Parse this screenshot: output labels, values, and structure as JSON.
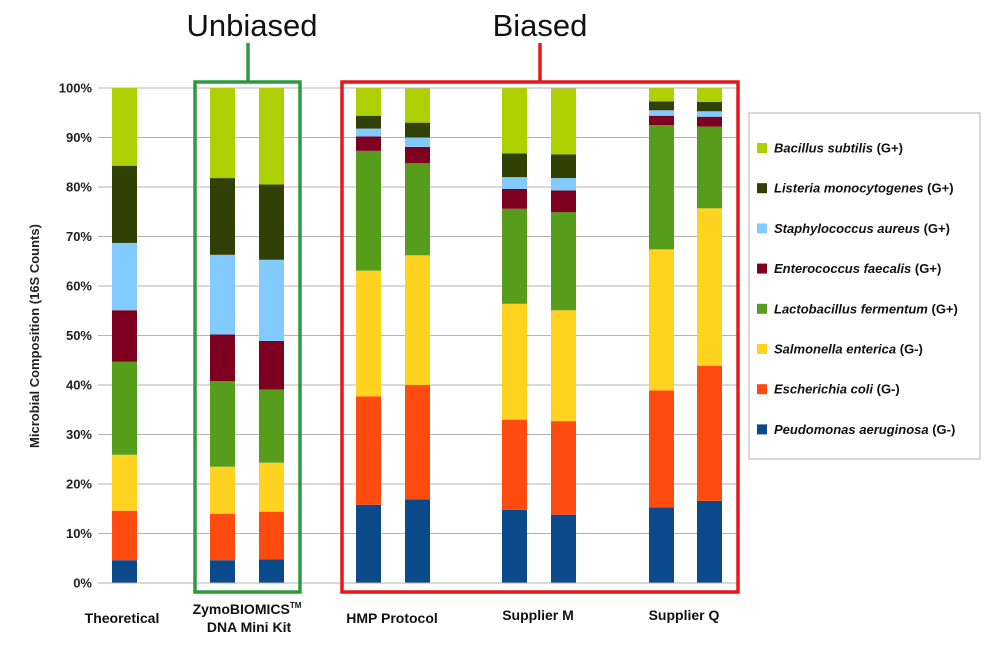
{
  "chart_data": {
    "type": "bar",
    "stacked": true,
    "ylabel": "Microbial Composition (16S Counts)",
    "ylim": [
      0,
      100
    ],
    "yticks": [
      "0%",
      "10%",
      "20%",
      "30%",
      "40%",
      "50%",
      "60%",
      "70%",
      "80%",
      "90%",
      "100%"
    ],
    "grid": true,
    "legend_position": "right",
    "groups": [
      {
        "label": "Theoretical",
        "label_line2": "",
        "bars": 1
      },
      {
        "label": "ZymoBIOMICS",
        "label_sup": "TM",
        "label_line2": "DNA Mini Kit",
        "bars": 2
      },
      {
        "label": "HMP Protocol",
        "label_line2": "",
        "bars": 2
      },
      {
        "label": "Supplier M",
        "label_line2": "",
        "bars": 2
      },
      {
        "label": "Supplier Q",
        "label_line2": "",
        "bars": 2
      }
    ],
    "annotations": [
      {
        "text": "Unbiased",
        "color": "#2e9a3e"
      },
      {
        "text": "Biased",
        "color": "#e3191c"
      }
    ],
    "series": [
      {
        "species": "Peudomonas aeruginosa",
        "suffix": " (G-)",
        "color": "#0b4a8a",
        "values": [
          4.6,
          4.6,
          4.8,
          15.8,
          16.9,
          14.8,
          13.8,
          15.3,
          16.6
        ]
      },
      {
        "species": "Escherichia coli",
        "suffix": " (G-)",
        "color": "#ff4a10",
        "values": [
          10.0,
          9.4,
          9.6,
          21.9,
          23.1,
          18.2,
          18.9,
          23.6,
          27.3
        ]
      },
      {
        "species": "Salmonella enterica",
        "suffix": " (G-)",
        "color": "#ffd320",
        "values": [
          11.3,
          9.5,
          9.9,
          25.4,
          26.2,
          23.4,
          22.4,
          28.5,
          31.8
        ]
      },
      {
        "species": "Lactobacillus fermentum",
        "suffix": " (G+)",
        "color": "#579d1c",
        "values": [
          18.8,
          17.3,
          14.8,
          24.2,
          18.6,
          19.2,
          19.8,
          25.1,
          16.5
        ]
      },
      {
        "species": "Enterococcus faecalis",
        "suffix": " (G+)",
        "color": "#7e0021",
        "values": [
          10.4,
          9.4,
          9.8,
          2.9,
          3.3,
          4.0,
          4.4,
          1.9,
          2.0
        ]
      },
      {
        "species": "Staphylococcus aureus",
        "suffix": " (G+)",
        "color": "#83caff",
        "values": [
          13.6,
          16.1,
          16.4,
          1.6,
          1.9,
          2.4,
          2.5,
          1.1,
          1.1
        ]
      },
      {
        "species": "Listeria monocytogenes",
        "suffix": " (G+)",
        "color": "#314004",
        "values": [
          15.6,
          15.5,
          15.2,
          2.6,
          3.0,
          4.8,
          4.8,
          1.8,
          1.9
        ]
      },
      {
        "species": "Bacillus subtilis",
        "suffix": " (G+)",
        "color": "#aecf00",
        "values": [
          15.7,
          18.2,
          19.5,
          5.6,
          6.9,
          13.2,
          13.3,
          2.7,
          2.8
        ]
      }
    ]
  }
}
